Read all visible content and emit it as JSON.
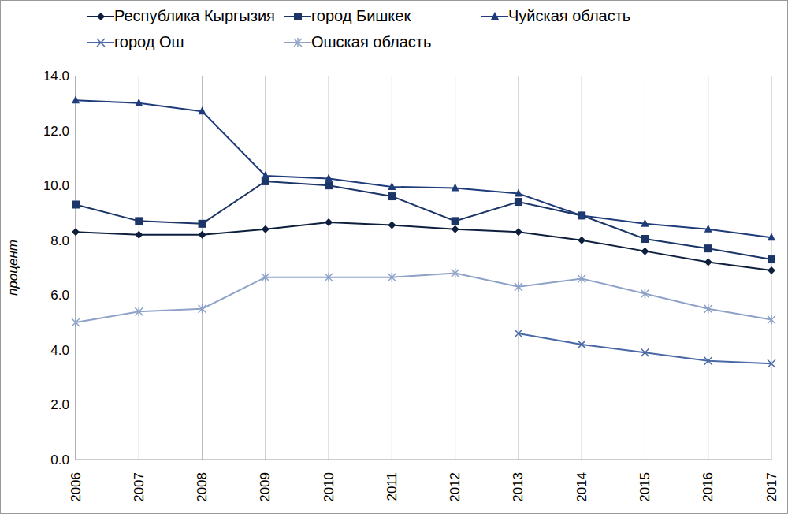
{
  "chart_data": {
    "type": "line",
    "y_label": "процент",
    "categories": [
      "2006",
      "2007",
      "2008",
      "2009",
      "2010",
      "2011",
      "2012",
      "2013",
      "2014",
      "2015",
      "2016",
      "2017"
    ],
    "series": [
      {
        "name": "Республика Кыргызия",
        "color": "#0e1f3d",
        "marker": "diamond",
        "values": [
          8.3,
          8.2,
          8.2,
          8.4,
          8.65,
          8.55,
          8.4,
          8.3,
          8.0,
          7.6,
          7.2,
          6.9
        ]
      },
      {
        "name": "город Бишкек",
        "color": "#1c3567",
        "marker": "square",
        "values": [
          9.3,
          8.7,
          8.6,
          10.15,
          10.0,
          9.6,
          8.7,
          9.4,
          8.9,
          8.05,
          7.7,
          7.3
        ]
      },
      {
        "name": "Чуйская область",
        "color": "#1f3c7a",
        "marker": "triangle",
        "values": [
          13.1,
          13.0,
          12.7,
          10.35,
          10.25,
          9.95,
          9.9,
          9.7,
          8.9,
          8.6,
          8.4,
          8.1
        ]
      },
      {
        "name": "город Ош",
        "color": "#4a68a6",
        "marker": "x",
        "values": [
          null,
          null,
          null,
          null,
          null,
          null,
          null,
          4.6,
          4.2,
          3.9,
          3.6,
          3.5
        ]
      },
      {
        "name": "Ошская область",
        "color": "#8ea2c8",
        "marker": "star",
        "values": [
          5.0,
          5.4,
          5.5,
          6.65,
          6.65,
          6.65,
          6.8,
          6.3,
          6.6,
          6.05,
          5.5,
          5.1
        ]
      }
    ],
    "ylim": [
      0,
      14
    ],
    "yticks": [
      {
        "value": 0,
        "label": "0.0"
      },
      {
        "value": 2,
        "label": "2.0"
      },
      {
        "value": 4,
        "label": "4.0"
      },
      {
        "value": 6,
        "label": "6.0"
      },
      {
        "value": 8,
        "label": "8.0"
      },
      {
        "value": 10,
        "label": "10.0"
      },
      {
        "value": 12,
        "label": "12.0"
      },
      {
        "value": 14,
        "label": "14.0"
      }
    ],
    "grid": true,
    "legend": "top"
  }
}
